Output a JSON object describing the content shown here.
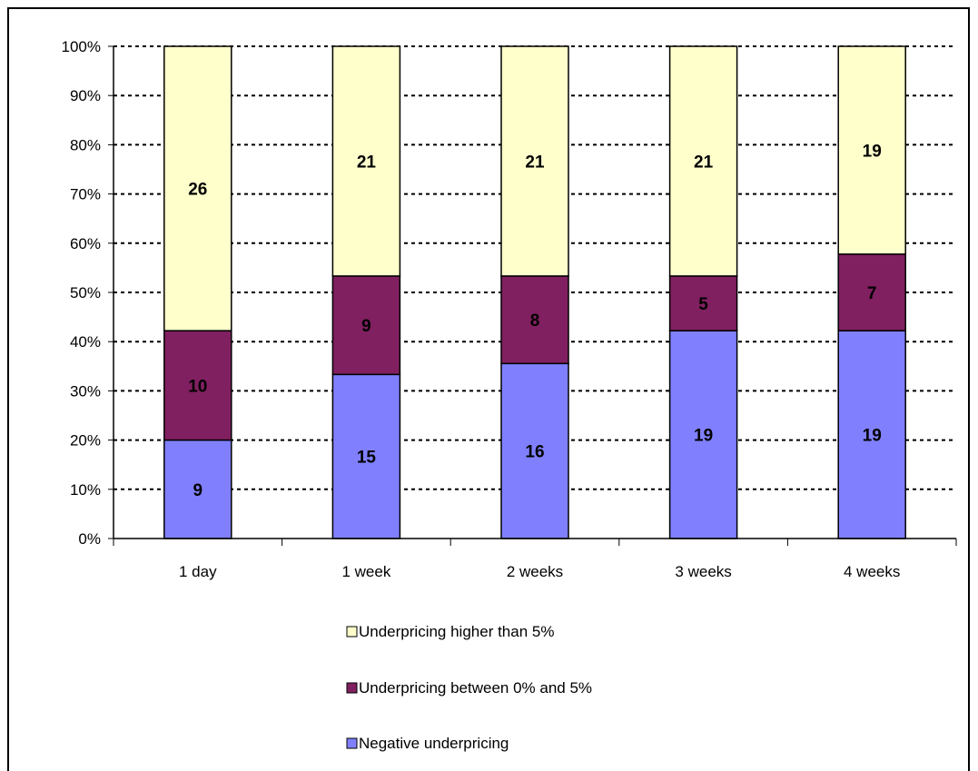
{
  "chart_data": {
    "type": "bar",
    "stacked": true,
    "normalized_percent": true,
    "categories": [
      "1 day",
      "1 week",
      "2 weeks",
      "3 weeks",
      "4 weeks"
    ],
    "series": [
      {
        "name": "Negative underpricing",
        "values": [
          9,
          15,
          16,
          19,
          19
        ],
        "color": "#8080FF"
      },
      {
        "name": "Underpricing between 0% and 5%",
        "values": [
          10,
          9,
          8,
          5,
          7
        ],
        "color": "#802060"
      },
      {
        "name": "Underpricing higher than 5%",
        "values": [
          26,
          21,
          21,
          21,
          19
        ],
        "color": "#FFFFCC"
      }
    ],
    "ylim": [
      0,
      100
    ],
    "yticks": [
      "0%",
      "10%",
      "20%",
      "30%",
      "40%",
      "50%",
      "60%",
      "70%",
      "80%",
      "90%",
      "100%"
    ],
    "grid": true,
    "legend_position": "bottom",
    "legend_order": [
      "Underpricing higher than 5%",
      "Underpricing between 0% and 5%",
      "Negative underpricing"
    ],
    "title": "",
    "xlabel": "",
    "ylabel": ""
  }
}
